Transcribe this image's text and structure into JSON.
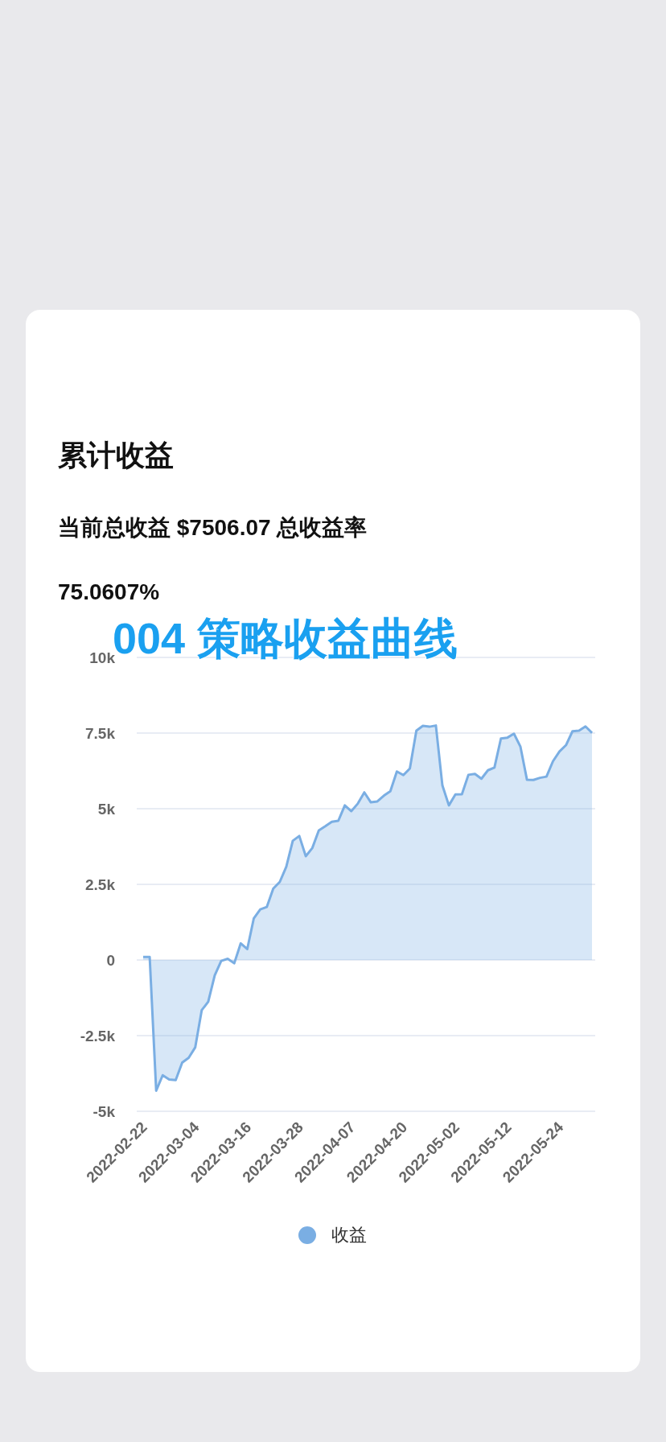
{
  "chart_data": {
    "type": "area",
    "title": "累计收益",
    "subtitle": "当前总收益  $7506.07     总收益率 75.0607%",
    "annotations": [
      "004 策略收益曲线"
    ],
    "categories": [
      "2022-02-22",
      null,
      null,
      null,
      null,
      null,
      null,
      null,
      "2022-03-04",
      null,
      null,
      null,
      null,
      null,
      null,
      null,
      "2022-03-16",
      null,
      null,
      null,
      null,
      null,
      null,
      null,
      "2022-03-28",
      null,
      null,
      null,
      null,
      null,
      null,
      null,
      "2022-04-07",
      null,
      null,
      null,
      null,
      null,
      null,
      null,
      "2022-04-20",
      null,
      null,
      null,
      null,
      null,
      null,
      null,
      "2022-05-02",
      null,
      null,
      null,
      null,
      null,
      null,
      null,
      "2022-05-12",
      null,
      null,
      null,
      null,
      null,
      null,
      null,
      "2022-05-24",
      null,
      null,
      null,
      null,
      null
    ],
    "series": [
      {
        "name": "收益",
        "color": "#7aaee3",
        "values": [
          100,
          100,
          -4320,
          -3810,
          -3950,
          -3970,
          -3390,
          -3230,
          -2890,
          -1660,
          -1380,
          -510,
          -30,
          40,
          -110,
          550,
          360,
          1370,
          1670,
          1750,
          2360,
          2580,
          3080,
          3940,
          4100,
          3430,
          3700,
          4280,
          4420,
          4570,
          4600,
          5110,
          4920,
          5170,
          5540,
          5210,
          5240,
          5430,
          5580,
          6230,
          6110,
          6330,
          7580,
          7740,
          7710,
          7750,
          5770,
          5110,
          5470,
          5480,
          6120,
          6150,
          5990,
          6270,
          6360,
          7320,
          7350,
          7480,
          7050,
          5960,
          5950,
          6020,
          6060,
          6570,
          6890,
          7100,
          7560,
          7580,
          7720,
          7506.07
        ]
      }
    ],
    "ylim": [
      -5000,
      10000
    ],
    "yticks": [
      {
        "value": -5000,
        "label": "-5k"
      },
      {
        "value": -2500,
        "label": "-2.5k"
      },
      {
        "value": 0,
        "label": "0"
      },
      {
        "value": 2500,
        "label": "2.5k"
      },
      {
        "value": 5000,
        "label": "5k"
      },
      {
        "value": 7500,
        "label": "7.5k"
      },
      {
        "value": 10000,
        "label": "10k"
      }
    ],
    "grid": "y",
    "legend": "bottom"
  }
}
